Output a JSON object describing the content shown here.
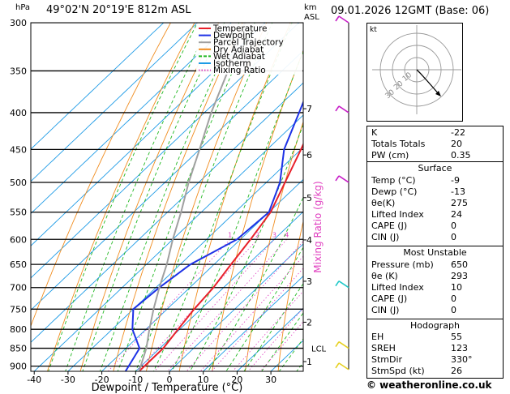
{
  "header": {
    "units_left": "hPa",
    "location": "49°02'N  20°19'E  812m  ASL",
    "units_right_km": "km",
    "units_right_asl": "ASL",
    "datetime": "09.01.2026  12GMT  (Base: 06)"
  },
  "chart_data": {
    "type": "skew-t",
    "xlabel": "Dewpoint / Temperature (°C)",
    "ylabel": "hPa",
    "mixing_ratio_label": "Mixing Ratio (g/kg)",
    "xlim": [
      -40,
      35
    ],
    "xticks": [
      -40,
      -30,
      -20,
      -10,
      0,
      10,
      20,
      30
    ],
    "pressure_levels": [
      300,
      350,
      400,
      450,
      500,
      550,
      600,
      650,
      700,
      750,
      800,
      850,
      900
    ],
    "km_ticks": [
      {
        "km": "1",
        "p": 887
      },
      {
        "km": "2",
        "p": 782
      },
      {
        "km": "3",
        "p": 686
      },
      {
        "km": "4",
        "p": 601
      },
      {
        "km": "5",
        "p": 525
      },
      {
        "km": "6",
        "p": 458
      },
      {
        "km": "7",
        "p": 395
      }
    ],
    "lcl": {
      "label": "LCL",
      "p": 850
    },
    "mixing_ratio_values": [
      "1",
      "2",
      "3",
      "4",
      "6",
      "8",
      "10",
      "15",
      "20",
      "25"
    ],
    "legend": [
      {
        "name": "Temperature",
        "color": "#e8202a"
      },
      {
        "name": "Dewpoint",
        "color": "#1e32e6"
      },
      {
        "name": "Parcel Trajectory",
        "color": "#a0a0a0"
      },
      {
        "name": "Dry Adiabat",
        "color": "#f08c1e"
      },
      {
        "name": "Wet Adiabat",
        "color": "#22b822"
      },
      {
        "name": "Isotherm",
        "color": "#1e9be6"
      },
      {
        "name": "Mixing Ratio",
        "color": "#e040c0"
      }
    ],
    "series": [
      {
        "name": "Temperature",
        "color": "#e8202a",
        "points": [
          [
            915,
            -9
          ],
          [
            850,
            -9
          ],
          [
            800,
            -10.5
          ],
          [
            750,
            -12
          ],
          [
            700,
            -13
          ],
          [
            650,
            -15
          ],
          [
            600,
            -17
          ],
          [
            550,
            -19.5
          ],
          [
            500,
            -24.5
          ],
          [
            450,
            -30
          ],
          [
            400,
            -36.5
          ],
          [
            350,
            -43.5
          ],
          [
            300,
            -52
          ]
        ]
      },
      {
        "name": "Dewpoint",
        "color": "#1e32e6",
        "points": [
          [
            915,
            -13
          ],
          [
            850,
            -16
          ],
          [
            800,
            -24
          ],
          [
            750,
            -30
          ],
          [
            700,
            -29
          ],
          [
            650,
            -27
          ],
          [
            600,
            -21
          ],
          [
            550,
            -20
          ],
          [
            500,
            -26
          ],
          [
            450,
            -35
          ],
          [
            400,
            -42
          ],
          [
            350,
            -50
          ],
          [
            300,
            -59
          ]
        ]
      },
      {
        "name": "Parcel Trajectory",
        "color": "#a0a0a0",
        "points": [
          [
            915,
            -9
          ],
          [
            850,
            -14
          ],
          [
            800,
            -19
          ],
          [
            750,
            -24
          ],
          [
            700,
            -29
          ],
          [
            650,
            -34
          ],
          [
            600,
            -40
          ],
          [
            550,
            -46
          ],
          [
            500,
            -53
          ],
          [
            450,
            -60
          ],
          [
            400,
            -68
          ],
          [
            350,
            -76
          ],
          [
            300,
            -86
          ]
        ]
      }
    ]
  },
  "hodograph": {
    "label": "kt",
    "rings": [
      "10",
      "20",
      "30"
    ],
    "colors": {
      "ring": "#999999",
      "wind": "#000000",
      "ring_label": "#888888"
    }
  },
  "indices": {
    "rows": [
      {
        "label": "K",
        "value": "-22"
      },
      {
        "label": "Totals Totals",
        "value": "20"
      },
      {
        "label": "PW (cm)",
        "value": "0.35"
      }
    ]
  },
  "surface": {
    "title": "Surface",
    "rows": [
      {
        "label": "Temp (°C)",
        "value": "-9"
      },
      {
        "label": "Dewp (°C)",
        "value": "-13"
      },
      {
        "label": "θe(K)",
        "value": "275"
      },
      {
        "label": "Lifted Index",
        "value": "24"
      },
      {
        "label": "CAPE (J)",
        "value": "0"
      },
      {
        "label": "CIN (J)",
        "value": "0"
      }
    ]
  },
  "most_unstable": {
    "title": "Most Unstable",
    "rows": [
      {
        "label": "Pressure (mb)",
        "value": "650"
      },
      {
        "label": "θe (K)",
        "value": "293"
      },
      {
        "label": "Lifted Index",
        "value": "10"
      },
      {
        "label": "CAPE (J)",
        "value": "0"
      },
      {
        "label": "CIN (J)",
        "value": "0"
      }
    ]
  },
  "hodograph_table": {
    "title": "Hodograph",
    "rows": [
      {
        "label": "EH",
        "value": "55"
      },
      {
        "label": "SREH",
        "value": "123"
      },
      {
        "label": "StmDir",
        "value": "330°"
      },
      {
        "label": "StmSpd (kt)",
        "value": "26"
      }
    ]
  },
  "footer": {
    "copyright": "© weatheronline.co.uk"
  }
}
